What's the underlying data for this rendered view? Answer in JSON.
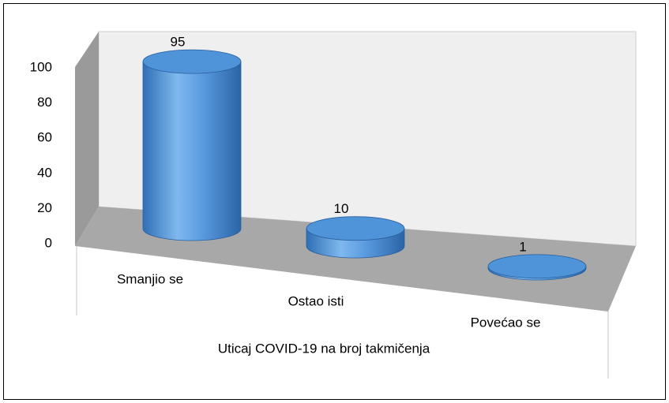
{
  "chart_data": {
    "type": "bar3d",
    "x_label": "Uticaj COVID-19 na broj takmičenja",
    "categories": [
      "Smanjio se",
      "Ostao isti",
      "Povećao se"
    ],
    "values": [
      95,
      10,
      1
    ],
    "color": "#4f93d8",
    "ylim": [
      0,
      100
    ],
    "yticks": [
      0,
      20,
      40,
      60,
      80,
      100
    ]
  }
}
